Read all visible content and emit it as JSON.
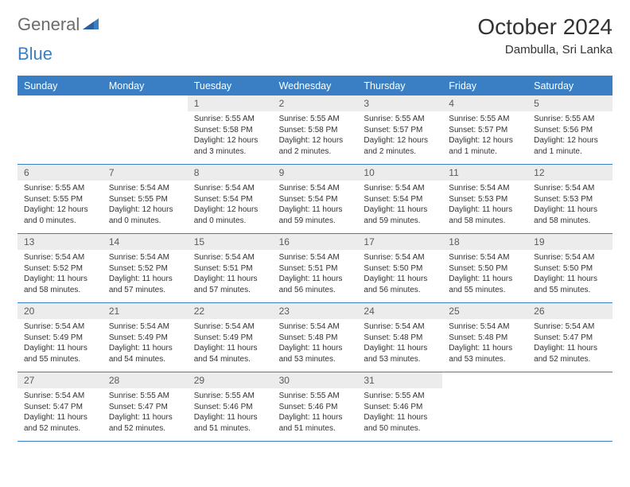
{
  "logo": {
    "general": "General",
    "blue": "Blue"
  },
  "title": "October 2024",
  "subtitle": "Dambulla, Sri Lanka",
  "weekdays": [
    "Sunday",
    "Monday",
    "Tuesday",
    "Wednesday",
    "Thursday",
    "Friday",
    "Saturday"
  ],
  "colors": {
    "accent": "#3a7fc4",
    "logo_gray": "#6b6b6b",
    "day_num_bg": "#ececec",
    "text": "#333333",
    "background": "#ffffff"
  },
  "typography": {
    "title_fontsize": 28,
    "subtitle_fontsize": 15,
    "weekday_fontsize": 12.5,
    "daynum_fontsize": 12,
    "body_fontsize": 10
  },
  "layout": {
    "columns": 7,
    "rows": 5,
    "cell_min_height": 86
  },
  "weeks": [
    [
      {
        "empty": true
      },
      {
        "empty": true
      },
      {
        "num": "1",
        "sunrise": "Sunrise: 5:55 AM",
        "sunset": "Sunset: 5:58 PM",
        "daylight": "Daylight: 12 hours and 3 minutes."
      },
      {
        "num": "2",
        "sunrise": "Sunrise: 5:55 AM",
        "sunset": "Sunset: 5:58 PM",
        "daylight": "Daylight: 12 hours and 2 minutes."
      },
      {
        "num": "3",
        "sunrise": "Sunrise: 5:55 AM",
        "sunset": "Sunset: 5:57 PM",
        "daylight": "Daylight: 12 hours and 2 minutes."
      },
      {
        "num": "4",
        "sunrise": "Sunrise: 5:55 AM",
        "sunset": "Sunset: 5:57 PM",
        "daylight": "Daylight: 12 hours and 1 minute."
      },
      {
        "num": "5",
        "sunrise": "Sunrise: 5:55 AM",
        "sunset": "Sunset: 5:56 PM",
        "daylight": "Daylight: 12 hours and 1 minute."
      }
    ],
    [
      {
        "num": "6",
        "sunrise": "Sunrise: 5:55 AM",
        "sunset": "Sunset: 5:55 PM",
        "daylight": "Daylight: 12 hours and 0 minutes."
      },
      {
        "num": "7",
        "sunrise": "Sunrise: 5:54 AM",
        "sunset": "Sunset: 5:55 PM",
        "daylight": "Daylight: 12 hours and 0 minutes."
      },
      {
        "num": "8",
        "sunrise": "Sunrise: 5:54 AM",
        "sunset": "Sunset: 5:54 PM",
        "daylight": "Daylight: 12 hours and 0 minutes."
      },
      {
        "num": "9",
        "sunrise": "Sunrise: 5:54 AM",
        "sunset": "Sunset: 5:54 PM",
        "daylight": "Daylight: 11 hours and 59 minutes."
      },
      {
        "num": "10",
        "sunrise": "Sunrise: 5:54 AM",
        "sunset": "Sunset: 5:54 PM",
        "daylight": "Daylight: 11 hours and 59 minutes."
      },
      {
        "num": "11",
        "sunrise": "Sunrise: 5:54 AM",
        "sunset": "Sunset: 5:53 PM",
        "daylight": "Daylight: 11 hours and 58 minutes."
      },
      {
        "num": "12",
        "sunrise": "Sunrise: 5:54 AM",
        "sunset": "Sunset: 5:53 PM",
        "daylight": "Daylight: 11 hours and 58 minutes."
      }
    ],
    [
      {
        "num": "13",
        "sunrise": "Sunrise: 5:54 AM",
        "sunset": "Sunset: 5:52 PM",
        "daylight": "Daylight: 11 hours and 58 minutes."
      },
      {
        "num": "14",
        "sunrise": "Sunrise: 5:54 AM",
        "sunset": "Sunset: 5:52 PM",
        "daylight": "Daylight: 11 hours and 57 minutes."
      },
      {
        "num": "15",
        "sunrise": "Sunrise: 5:54 AM",
        "sunset": "Sunset: 5:51 PM",
        "daylight": "Daylight: 11 hours and 57 minutes."
      },
      {
        "num": "16",
        "sunrise": "Sunrise: 5:54 AM",
        "sunset": "Sunset: 5:51 PM",
        "daylight": "Daylight: 11 hours and 56 minutes."
      },
      {
        "num": "17",
        "sunrise": "Sunrise: 5:54 AM",
        "sunset": "Sunset: 5:50 PM",
        "daylight": "Daylight: 11 hours and 56 minutes."
      },
      {
        "num": "18",
        "sunrise": "Sunrise: 5:54 AM",
        "sunset": "Sunset: 5:50 PM",
        "daylight": "Daylight: 11 hours and 55 minutes."
      },
      {
        "num": "19",
        "sunrise": "Sunrise: 5:54 AM",
        "sunset": "Sunset: 5:50 PM",
        "daylight": "Daylight: 11 hours and 55 minutes."
      }
    ],
    [
      {
        "num": "20",
        "sunrise": "Sunrise: 5:54 AM",
        "sunset": "Sunset: 5:49 PM",
        "daylight": "Daylight: 11 hours and 55 minutes."
      },
      {
        "num": "21",
        "sunrise": "Sunrise: 5:54 AM",
        "sunset": "Sunset: 5:49 PM",
        "daylight": "Daylight: 11 hours and 54 minutes."
      },
      {
        "num": "22",
        "sunrise": "Sunrise: 5:54 AM",
        "sunset": "Sunset: 5:49 PM",
        "daylight": "Daylight: 11 hours and 54 minutes."
      },
      {
        "num": "23",
        "sunrise": "Sunrise: 5:54 AM",
        "sunset": "Sunset: 5:48 PM",
        "daylight": "Daylight: 11 hours and 53 minutes."
      },
      {
        "num": "24",
        "sunrise": "Sunrise: 5:54 AM",
        "sunset": "Sunset: 5:48 PM",
        "daylight": "Daylight: 11 hours and 53 minutes."
      },
      {
        "num": "25",
        "sunrise": "Sunrise: 5:54 AM",
        "sunset": "Sunset: 5:48 PM",
        "daylight": "Daylight: 11 hours and 53 minutes."
      },
      {
        "num": "26",
        "sunrise": "Sunrise: 5:54 AM",
        "sunset": "Sunset: 5:47 PM",
        "daylight": "Daylight: 11 hours and 52 minutes."
      }
    ],
    [
      {
        "num": "27",
        "sunrise": "Sunrise: 5:54 AM",
        "sunset": "Sunset: 5:47 PM",
        "daylight": "Daylight: 11 hours and 52 minutes."
      },
      {
        "num": "28",
        "sunrise": "Sunrise: 5:55 AM",
        "sunset": "Sunset: 5:47 PM",
        "daylight": "Daylight: 11 hours and 52 minutes."
      },
      {
        "num": "29",
        "sunrise": "Sunrise: 5:55 AM",
        "sunset": "Sunset: 5:46 PM",
        "daylight": "Daylight: 11 hours and 51 minutes."
      },
      {
        "num": "30",
        "sunrise": "Sunrise: 5:55 AM",
        "sunset": "Sunset: 5:46 PM",
        "daylight": "Daylight: 11 hours and 51 minutes."
      },
      {
        "num": "31",
        "sunrise": "Sunrise: 5:55 AM",
        "sunset": "Sunset: 5:46 PM",
        "daylight": "Daylight: 11 hours and 50 minutes."
      },
      {
        "empty": true
      },
      {
        "empty": true
      }
    ]
  ]
}
